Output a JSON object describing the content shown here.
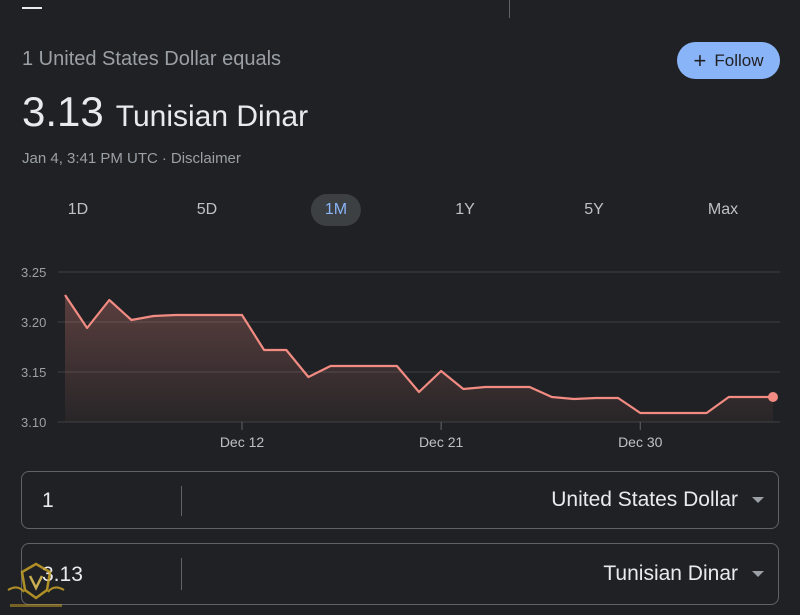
{
  "header": {
    "subtitle": "1 United States Dollar equals",
    "rate_value": "3.13",
    "rate_currency": "Tunisian Dinar",
    "timestamp": "Jan 4, 3:41 PM UTC",
    "separator": "·",
    "disclaimer": "Disclaimer",
    "follow_label": "Follow"
  },
  "tabs": [
    {
      "label": "1D"
    },
    {
      "label": "5D"
    },
    {
      "label": "1M",
      "active": true
    },
    {
      "label": "1Y"
    },
    {
      "label": "5Y"
    },
    {
      "label": "Max"
    }
  ],
  "chart_data": {
    "type": "area",
    "x": [
      1,
      2,
      3,
      4,
      5,
      6,
      7,
      8,
      9,
      10,
      11,
      12,
      13,
      14,
      15,
      16,
      17,
      18,
      19,
      20,
      21,
      22,
      23,
      24,
      25,
      26,
      27,
      28,
      29,
      30,
      31,
      32,
      33
    ],
    "values": [
      3.227,
      3.194,
      3.222,
      3.202,
      3.206,
      3.207,
      3.207,
      3.207,
      3.207,
      3.172,
      3.172,
      3.145,
      3.156,
      3.156,
      3.156,
      3.156,
      3.13,
      3.151,
      3.133,
      3.135,
      3.135,
      3.135,
      3.125,
      3.123,
      3.124,
      3.124,
      3.109,
      3.109,
      3.109,
      3.109,
      3.125,
      3.125,
      3.125
    ],
    "ylim": [
      3.1,
      3.25
    ],
    "yticks": [
      "3.10",
      "3.15",
      "3.20",
      "3.25"
    ],
    "xticks": [
      {
        "index": 8,
        "label": "Dec 12"
      },
      {
        "index": 17,
        "label": "Dec 21"
      },
      {
        "index": 26,
        "label": "Dec 30"
      }
    ],
    "grid": true,
    "line_color": "#f28b82"
  },
  "converter": {
    "from_amount": "1",
    "from_currency": "United States Dollar",
    "to_amount": "3.13",
    "to_currency": "Tunisian Dinar"
  }
}
